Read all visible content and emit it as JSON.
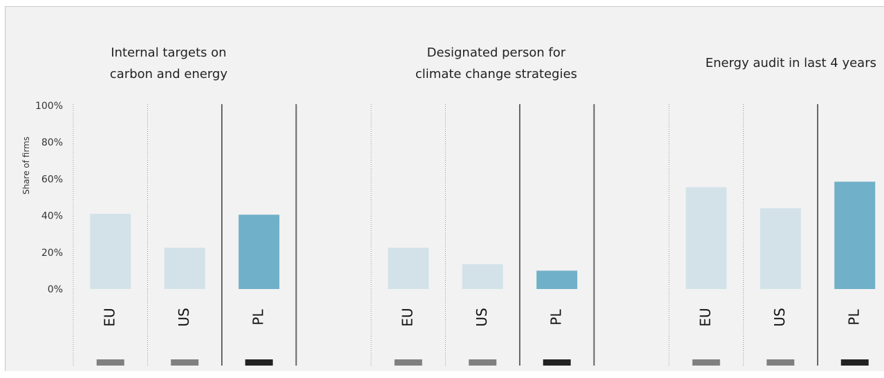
{
  "chart_data": {
    "type": "bar",
    "ylabel": "Share of firms",
    "yticks": [
      "100%",
      "80%",
      "60%",
      "40%",
      "20%",
      "0%"
    ],
    "ylim": [
      0,
      100
    ],
    "categories": [
      "EU",
      "US",
      "PL"
    ],
    "colors": {
      "EU": "#d3e2e8",
      "US": "#d3e2e8",
      "PL": "#70b0c8"
    },
    "legend_swatch_colors": {
      "EU": "#808080",
      "US": "#808080",
      "PL": "#222222"
    },
    "groups": [
      {
        "title_lines": [
          "Internal targets on",
          "carbon and energy"
        ],
        "values": [
          41,
          22.5,
          40.5
        ]
      },
      {
        "title_lines": [
          "Designated person for",
          "climate change strategies"
        ],
        "values": [
          22.5,
          13.5,
          10
        ]
      },
      {
        "title_lines": [
          "Energy audit in last 4 years"
        ],
        "values": [
          55.5,
          44,
          58.5
        ]
      }
    ]
  }
}
